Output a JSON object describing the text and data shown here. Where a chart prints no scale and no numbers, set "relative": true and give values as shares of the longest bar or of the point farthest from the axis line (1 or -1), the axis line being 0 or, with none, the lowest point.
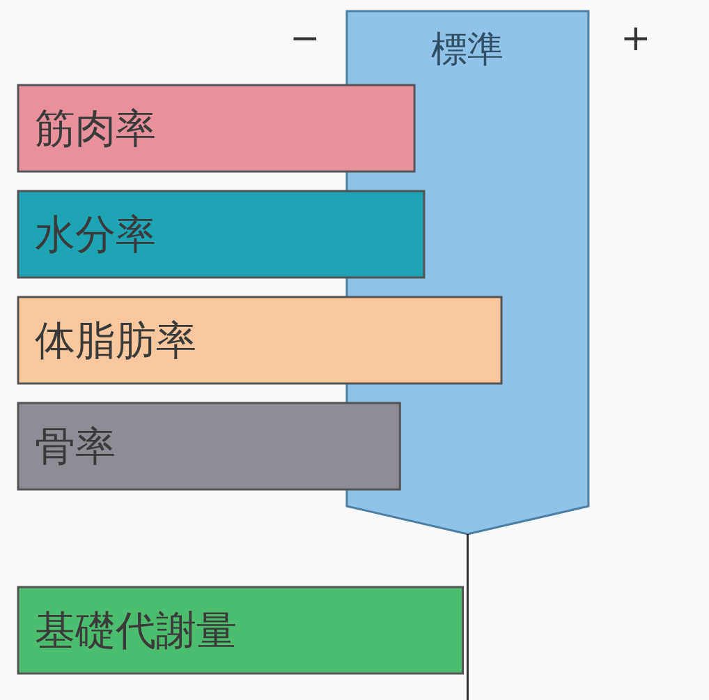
{
  "chart_data": {
    "type": "bar",
    "orientation": "horizontal",
    "relative": true,
    "categories": [
      "筋肉率",
      "水分率",
      "体脂肪率",
      "骨率",
      "基礎代謝量"
    ],
    "values": [
      0.82,
      0.84,
      1,
      0.79,
      0.92
    ],
    "colors": [
      "#e8919c",
      "#1ea5b5",
      "#f8c79d",
      "#8e8d95",
      "#4cbd6f"
    ],
    "bands": [
      {
        "axis": "x",
        "from": 0.68,
        "to": 1.18,
        "label": "標準",
        "color": "#8fc3ea"
      }
    ],
    "ref_lines": [
      {
        "axis": "x",
        "value": 0.93
      }
    ],
    "annotations": [
      "−",
      "+"
    ]
  }
}
